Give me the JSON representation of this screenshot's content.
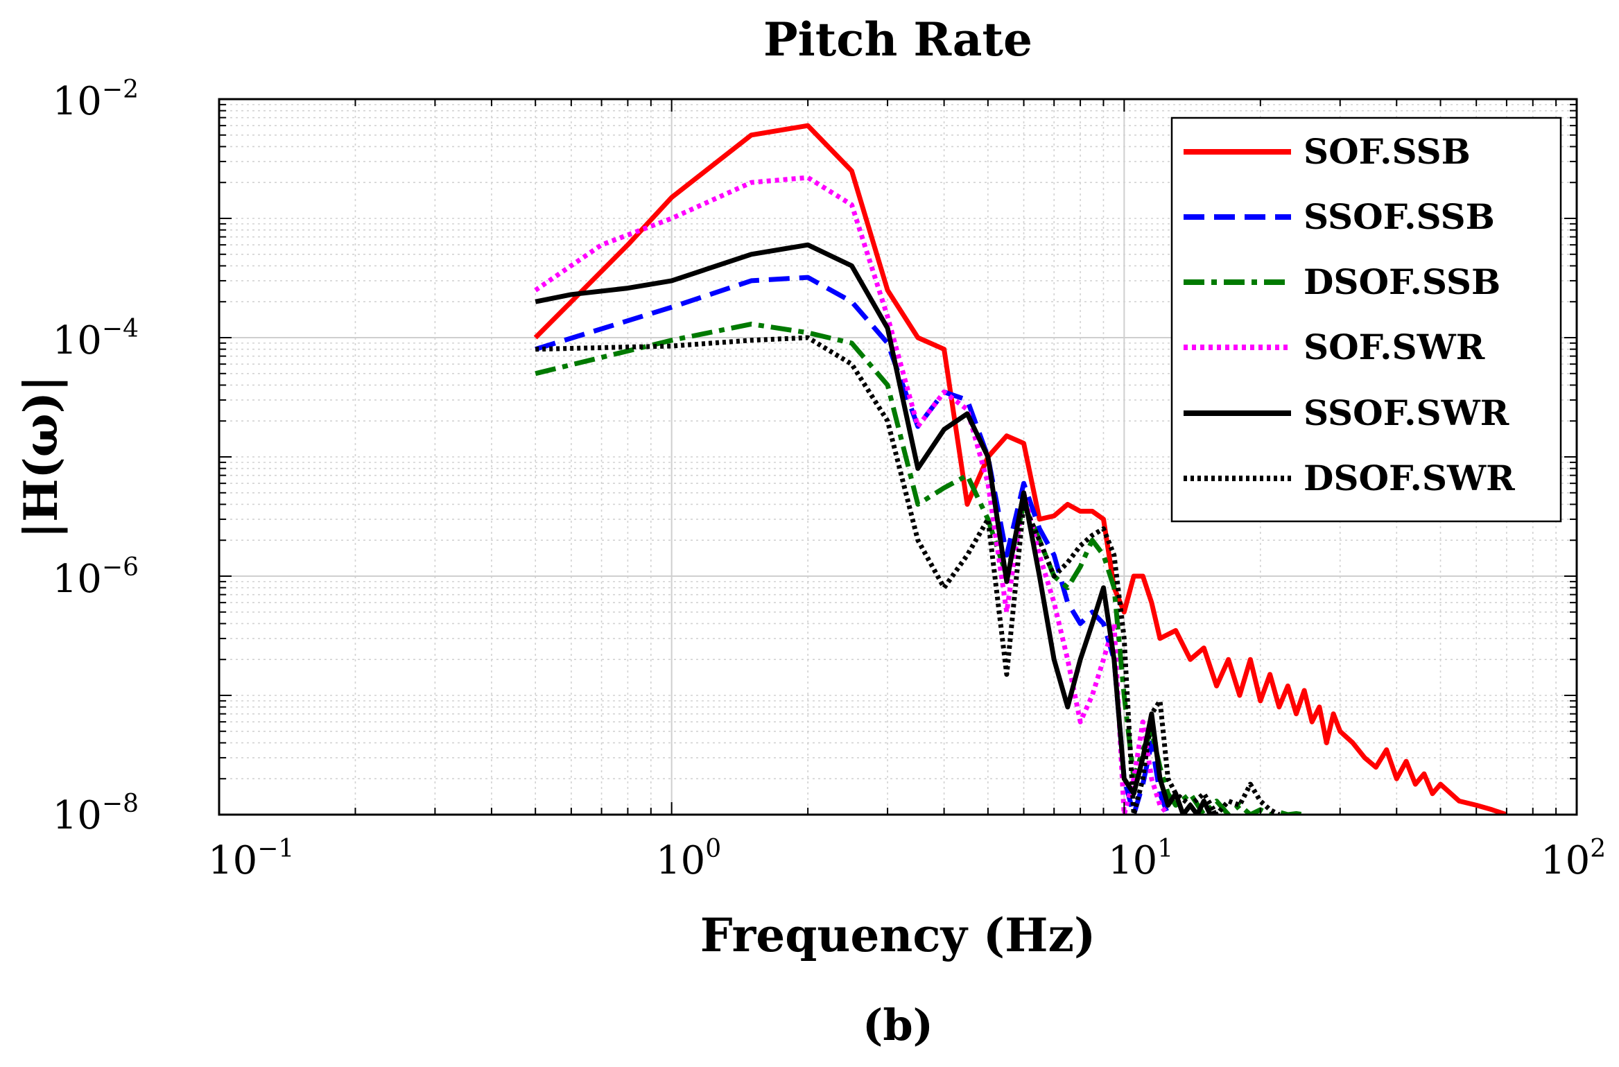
{
  "chart_data": {
    "type": "line",
    "title": "Pitch Rate",
    "xlabel": "Frequency (Hz)",
    "ylabel": "|H(ω)|",
    "xscale": "log",
    "yscale": "log",
    "xlim": [
      0.1,
      100
    ],
    "ylim": [
      1e-08,
      0.01
    ],
    "grid": true,
    "legend_position": "top-right",
    "panel_label": "(b)",
    "x_ticks": [
      {
        "base": "10",
        "exp": "−1",
        "value": 0.1
      },
      {
        "base": "10",
        "exp": "0",
        "value": 1
      },
      {
        "base": "10",
        "exp": "1",
        "value": 10
      },
      {
        "base": "10",
        "exp": "2",
        "value": 100
      }
    ],
    "y_ticks": [
      {
        "base": "10",
        "exp": "−2",
        "value": 0.01
      },
      {
        "base": "10",
        "exp": "−4",
        "value": 0.0001
      },
      {
        "base": "10",
        "exp": "−6",
        "value": 1e-06
      },
      {
        "base": "10",
        "exp": "−8",
        "value": 1e-08
      }
    ],
    "series": [
      {
        "name": "SOF.SSB",
        "color": "#ff0000",
        "style": "solid",
        "x": [
          0.5,
          0.6,
          0.8,
          1.0,
          1.5,
          2.0,
          2.5,
          3.0,
          3.5,
          4.0,
          4.5,
          5.0,
          5.5,
          6.0,
          6.5,
          7.0,
          7.5,
          8.0,
          8.5,
          9.0,
          9.5,
          10,
          10.5,
          11,
          11.5,
          12,
          13,
          14,
          15,
          16,
          17,
          18,
          19,
          20,
          21,
          22,
          23,
          24,
          25,
          26,
          27,
          28,
          29,
          30,
          32,
          34,
          36,
          38,
          40,
          42,
          44,
          46,
          48,
          50,
          55,
          60,
          65,
          70
        ],
        "values": [
          0.0001,
          0.0002,
          0.0006,
          0.0015,
          0.005,
          0.006,
          0.0025,
          0.00025,
          0.0001,
          8e-05,
          4e-06,
          1e-05,
          1.5e-05,
          1.3e-05,
          3e-06,
          3.2e-06,
          4e-06,
          3.5e-06,
          3.5e-06,
          3e-06,
          8e-07,
          5e-07,
          1e-06,
          1e-06,
          6e-07,
          3e-07,
          3.5e-07,
          2e-07,
          2.5e-07,
          1.2e-07,
          2e-07,
          1e-07,
          2e-07,
          9e-08,
          1.5e-07,
          8e-08,
          1.2e-07,
          7e-08,
          1.1e-07,
          6e-08,
          8e-08,
          4e-08,
          7e-08,
          5e-08,
          4e-08,
          3e-08,
          2.5e-08,
          3.5e-08,
          2e-08,
          2.8e-08,
          1.8e-08,
          2.2e-08,
          1.5e-08,
          1.8e-08,
          1.3e-08,
          1.2e-08,
          1.1e-08,
          1e-08
        ]
      },
      {
        "name": "SSOF.SSB",
        "color": "#0000ff",
        "style": "dashed",
        "x": [
          0.5,
          1.0,
          1.5,
          2.0,
          2.5,
          3.0,
          3.5,
          4.0,
          4.5,
          5.0,
          5.5,
          6.0,
          6.5,
          7.0,
          7.5,
          8.0,
          8.5,
          9.0,
          9.5,
          10,
          10.5,
          11,
          11.5,
          12,
          12.5
        ],
        "values": [
          8e-05,
          0.00018,
          0.0003,
          0.00032,
          0.0002,
          9e-05,
          1.8e-05,
          3.5e-05,
          3e-05,
          1e-05,
          1.5e-06,
          6e-06,
          2.5e-06,
          1.5e-06,
          6e-07,
          4e-07,
          5e-07,
          4e-07,
          2e-07,
          2e-08,
          1e-08,
          1.8e-08,
          4e-08,
          1.5e-08,
          1e-08
        ]
      },
      {
        "name": "DSOF.SSB",
        "color": "#007a00",
        "style": "dashdot",
        "x": [
          0.5,
          1.0,
          1.5,
          2.0,
          2.5,
          3.0,
          3.5,
          4.0,
          4.5,
          5.0,
          5.5,
          6.0,
          6.5,
          7.0,
          7.5,
          8.0,
          8.5,
          9.0,
          9.5,
          10,
          10.5,
          11,
          11.5,
          12,
          12.5,
          13,
          14,
          15,
          16,
          17,
          18,
          19,
          20,
          21,
          22,
          23,
          24,
          25
        ],
        "values": [
          5e-05,
          9.5e-05,
          0.00013,
          0.00011,
          9e-05,
          4e-05,
          4e-06,
          5.5e-06,
          7e-06,
          3e-06,
          1e-06,
          4e-06,
          2e-06,
          1e-06,
          8e-07,
          1.2e-06,
          2e-06,
          1.5e-06,
          8e-07,
          1e-07,
          2e-08,
          3.5e-08,
          5e-08,
          2.5e-08,
          1.5e-08,
          1.2e-08,
          1.5e-08,
          1e-08,
          1.3e-08,
          1e-08,
          1.2e-08,
          1e-08,
          1.1e-08,
          1e-08,
          1.05e-08,
          1e-08,
          1.02e-08,
          1e-08
        ]
      },
      {
        "name": "SOF.SWR",
        "color": "#ff00ff",
        "style": "dotted",
        "x": [
          0.5,
          0.7,
          1.0,
          1.5,
          2.0,
          2.5,
          3.0,
          3.5,
          4.0,
          4.5,
          5.0,
          5.5,
          6.0,
          6.5,
          7.0,
          7.5,
          8.0,
          8.5,
          9.0,
          9.5,
          10,
          10.5,
          11,
          11.5,
          12,
          12.5
        ],
        "values": [
          0.00025,
          0.0006,
          0.001,
          0.002,
          0.0022,
          0.0013,
          0.00015,
          1.8e-05,
          3.5e-05,
          2.5e-05,
          6e-06,
          5e-07,
          5e-06,
          1.5e-06,
          6e-07,
          2e-07,
          6e-08,
          1e-07,
          2e-07,
          4e-07,
          1e-08,
          2e-08,
          6e-08,
          2e-08,
          1.2e-08,
          1e-08
        ]
      },
      {
        "name": "SSOF.SWR",
        "color": "#000000",
        "style": "solid",
        "x": [
          0.5,
          0.6,
          0.8,
          1.0,
          1.5,
          2.0,
          2.5,
          3.0,
          3.5,
          4.0,
          4.5,
          5.0,
          5.5,
          6.0,
          6.5,
          7.0,
          7.5,
          8.0,
          8.5,
          9.0,
          9.5,
          10,
          10.5,
          11,
          11.5,
          12,
          12.5,
          13,
          13.5,
          14,
          14.5,
          15,
          15.5,
          16
        ],
        "values": [
          0.0002,
          0.00023,
          0.00026,
          0.0003,
          0.0005,
          0.0006,
          0.0004,
          0.00012,
          8e-06,
          1.7e-05,
          2.3e-05,
          1e-05,
          9e-07,
          5e-06,
          1e-06,
          2e-07,
          8e-08,
          2e-07,
          4e-07,
          8e-07,
          2e-07,
          2e-08,
          1.5e-08,
          3e-08,
          7e-08,
          2e-08,
          1.2e-08,
          1.5e-08,
          1e-08,
          1.2e-08,
          1e-08,
          1.3e-08,
          1e-08,
          1.05e-08
        ]
      },
      {
        "name": "DSOF.SWR",
        "color": "#000000",
        "style": "dense-dotted",
        "x": [
          0.5,
          1.0,
          1.5,
          2.0,
          2.5,
          3.0,
          3.5,
          4.0,
          4.5,
          5.0,
          5.5,
          6.0,
          6.5,
          7.0,
          7.5,
          8.0,
          8.5,
          9.0,
          9.5,
          10,
          10.5,
          11,
          11.5,
          12,
          12.5,
          13,
          14,
          15,
          16,
          17,
          18,
          19,
          20,
          21,
          22
        ],
        "values": [
          8e-05,
          8.5e-05,
          9.5e-05,
          0.0001,
          6e-05,
          2e-05,
          2e-06,
          8e-07,
          1.5e-06,
          3e-06,
          1.5e-07,
          4e-06,
          2e-06,
          1e-06,
          1.3e-06,
          1.8e-06,
          2.2e-06,
          2.5e-06,
          1.5e-06,
          3e-07,
          1e-08,
          2e-08,
          7e-08,
          9e-08,
          2e-08,
          1.5e-08,
          1.2e-08,
          1.5e-08,
          1e-08,
          1.3e-08,
          1.2e-08,
          1.8e-08,
          1.3e-08,
          1.1e-08,
          1e-08
        ]
      }
    ]
  }
}
